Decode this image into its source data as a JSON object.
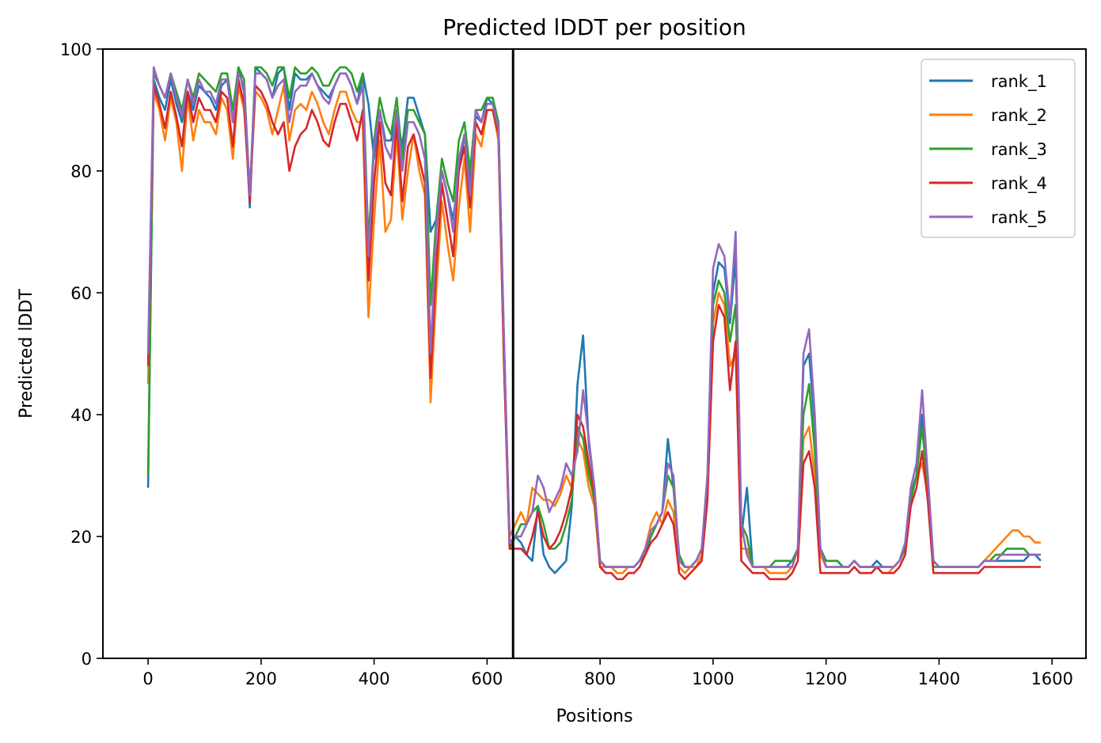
{
  "chart_data": {
    "type": "line",
    "title": "Predicted lDDT per position",
    "xlabel": "Positions",
    "ylabel": "Predicted lDDT",
    "xlim": [
      -80,
      1660
    ],
    "ylim": [
      0,
      100
    ],
    "xticks": [
      "0",
      "200",
      "400",
      "600",
      "800",
      "1000",
      "1200",
      "1400",
      "1600"
    ],
    "yticks": [
      "0",
      "20",
      "40",
      "60",
      "80",
      "100"
    ],
    "legend_position": "top-right",
    "vline_x": 646,
    "x_step": 10,
    "series": [
      {
        "name": "rank_1",
        "color": "#1f77b4",
        "values": [
          28,
          95,
          92,
          90,
          95,
          91,
          88,
          93,
          90,
          94,
          93,
          92,
          90,
          94,
          95,
          88,
          97,
          93,
          74,
          97,
          96,
          95,
          92,
          96,
          97,
          90,
          96,
          95,
          95,
          96,
          94,
          93,
          92,
          94,
          96,
          96,
          94,
          91,
          96,
          91,
          82,
          90,
          85,
          85,
          89,
          84,
          92,
          92,
          89,
          86,
          70,
          72,
          80,
          76,
          72,
          80,
          86,
          78,
          89,
          88,
          92,
          91,
          88,
          50,
          18,
          20,
          19,
          17,
          16,
          25,
          17,
          15,
          14,
          15,
          16,
          25,
          45,
          53,
          35,
          28,
          16,
          15,
          15,
          15,
          15,
          15,
          15,
          16,
          17,
          20,
          22,
          24,
          36,
          28,
          16,
          15,
          15,
          16,
          18,
          30,
          60,
          65,
          64,
          55,
          66,
          20,
          28,
          15,
          15,
          15,
          15,
          15,
          15,
          15,
          16,
          18,
          48,
          50,
          38,
          18,
          16,
          16,
          16,
          15,
          15,
          16,
          15,
          15,
          15,
          16,
          15,
          15,
          15,
          16,
          18,
          27,
          30,
          40,
          30,
          16,
          15,
          15,
          15,
          15,
          15,
          15,
          15,
          15,
          16,
          16,
          16,
          16,
          16,
          16,
          16,
          16,
          17,
          17,
          16
        ]
      },
      {
        "name": "rank_2",
        "color": "#ff7f0e",
        "values": [
          45,
          93,
          90,
          85,
          92,
          88,
          80,
          92,
          85,
          90,
          88,
          88,
          86,
          92,
          90,
          82,
          94,
          90,
          76,
          93,
          92,
          90,
          86,
          90,
          94,
          85,
          90,
          91,
          90,
          93,
          91,
          88,
          86,
          90,
          93,
          93,
          90,
          88,
          88,
          56,
          72,
          85,
          70,
          72,
          86,
          72,
          80,
          86,
          80,
          76,
          42,
          60,
          75,
          68,
          62,
          74,
          82,
          70,
          86,
          84,
          90,
          90,
          85,
          48,
          20,
          22,
          24,
          22,
          28,
          27,
          26,
          26,
          25,
          27,
          30,
          28,
          36,
          34,
          28,
          25,
          15,
          15,
          15,
          14,
          14,
          15,
          15,
          16,
          18,
          22,
          24,
          22,
          26,
          24,
          15,
          14,
          15,
          15,
          17,
          28,
          55,
          60,
          58,
          48,
          50,
          18,
          18,
          15,
          15,
          15,
          14,
          14,
          14,
          14,
          15,
          18,
          36,
          38,
          30,
          17,
          15,
          15,
          15,
          15,
          15,
          16,
          15,
          15,
          15,
          15,
          14,
          14,
          15,
          16,
          18,
          26,
          30,
          32,
          27,
          16,
          15,
          15,
          15,
          15,
          15,
          15,
          15,
          15,
          16,
          17,
          18,
          19,
          20,
          21,
          21,
          20,
          20,
          19,
          19
        ]
      },
      {
        "name": "rank_3",
        "color": "#2ca02c",
        "values": [
          30,
          96,
          94,
          92,
          96,
          93,
          90,
          95,
          92,
          96,
          95,
          94,
          93,
          96,
          96,
          90,
          97,
          95,
          76,
          97,
          97,
          96,
          94,
          97,
          97,
          92,
          97,
          96,
          96,
          97,
          96,
          94,
          94,
          96,
          97,
          97,
          96,
          93,
          96,
          68,
          85,
          92,
          88,
          86,
          92,
          82,
          90,
          90,
          88,
          86,
          58,
          72,
          82,
          78,
          75,
          85,
          88,
          80,
          90,
          90,
          92,
          92,
          88,
          52,
          18,
          20,
          22,
          22,
          24,
          25,
          22,
          18,
          18,
          19,
          22,
          26,
          38,
          36,
          30,
          26,
          16,
          15,
          15,
          15,
          15,
          15,
          15,
          16,
          18,
          20,
          22,
          24,
          30,
          28,
          17,
          15,
          15,
          16,
          18,
          28,
          58,
          62,
          60,
          52,
          58,
          22,
          20,
          15,
          15,
          15,
          15,
          16,
          16,
          16,
          16,
          18,
          40,
          45,
          34,
          18,
          16,
          16,
          16,
          15,
          15,
          16,
          15,
          15,
          15,
          15,
          15,
          15,
          15,
          16,
          18,
          26,
          30,
          38,
          28,
          15,
          15,
          15,
          15,
          15,
          15,
          15,
          15,
          15,
          16,
          16,
          17,
          17,
          18,
          18,
          18,
          18,
          17,
          17,
          17
        ]
      },
      {
        "name": "rank_4",
        "color": "#d62728",
        "values": [
          48,
          94,
          91,
          87,
          93,
          89,
          84,
          93,
          88,
          92,
          90,
          90,
          88,
          93,
          92,
          84,
          95,
          91,
          75,
          94,
          93,
          91,
          88,
          86,
          88,
          80,
          84,
          86,
          87,
          90,
          88,
          85,
          84,
          88,
          91,
          91,
          88,
          85,
          90,
          62,
          78,
          88,
          78,
          76,
          88,
          75,
          84,
          86,
          82,
          78,
          46,
          64,
          78,
          72,
          66,
          80,
          84,
          74,
          88,
          86,
          90,
          90,
          86,
          48,
          18,
          18,
          18,
          17,
          20,
          24,
          20,
          18,
          19,
          21,
          24,
          28,
          40,
          38,
          32,
          27,
          15,
          14,
          14,
          13,
          13,
          14,
          14,
          15,
          17,
          19,
          20,
          22,
          24,
          22,
          14,
          13,
          14,
          15,
          16,
          26,
          52,
          58,
          56,
          44,
          52,
          16,
          15,
          14,
          14,
          14,
          13,
          13,
          13,
          13,
          14,
          16,
          32,
          34,
          28,
          14,
          14,
          14,
          14,
          14,
          14,
          15,
          14,
          14,
          14,
          15,
          14,
          14,
          14,
          15,
          17,
          25,
          28,
          34,
          26,
          14,
          14,
          14,
          14,
          14,
          14,
          14,
          14,
          14,
          15,
          15,
          15,
          15,
          15,
          15,
          15,
          15,
          15,
          15,
          15
        ]
      },
      {
        "name": "rank_5",
        "color": "#9467bd",
        "values": [
          50,
          97,
          94,
          92,
          96,
          92,
          89,
          95,
          91,
          95,
          93,
          93,
          91,
          95,
          95,
          88,
          96,
          94,
          76,
          96,
          96,
          95,
          92,
          94,
          95,
          88,
          93,
          94,
          94,
          96,
          94,
          92,
          91,
          94,
          96,
          96,
          94,
          91,
          94,
          66,
          84,
          90,
          84,
          82,
          90,
          80,
          88,
          88,
          86,
          82,
          50,
          70,
          80,
          76,
          70,
          82,
          86,
          76,
          90,
          88,
          91,
          91,
          87,
          52,
          19,
          20,
          20,
          22,
          24,
          30,
          28,
          24,
          26,
          28,
          32,
          30,
          34,
          44,
          36,
          28,
          16,
          15,
          15,
          15,
          15,
          15,
          15,
          16,
          18,
          21,
          22,
          24,
          32,
          30,
          16,
          15,
          15,
          16,
          18,
          30,
          64,
          68,
          66,
          56,
          70,
          22,
          17,
          15,
          15,
          15,
          15,
          15,
          15,
          15,
          15,
          18,
          50,
          54,
          40,
          18,
          15,
          15,
          15,
          15,
          15,
          16,
          15,
          15,
          15,
          15,
          15,
          15,
          15,
          16,
          19,
          28,
          32,
          44,
          30,
          16,
          15,
          15,
          15,
          15,
          15,
          15,
          15,
          15,
          16,
          16,
          16,
          17,
          17,
          17,
          17,
          17,
          17,
          17,
          17
        ]
      }
    ]
  }
}
